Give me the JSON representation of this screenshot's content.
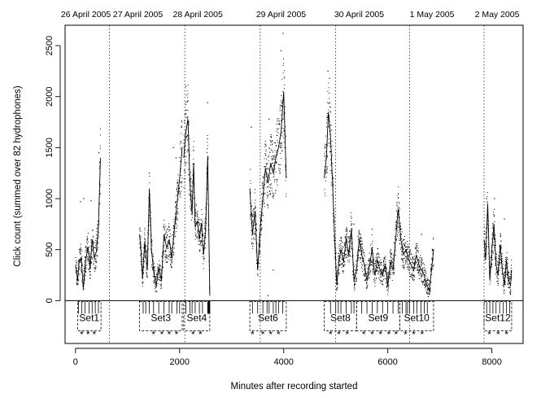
{
  "chart_data": {
    "type": "scatter",
    "xlabel": "Minutes after recording started",
    "ylabel": "Click count (summed over 82 hydrophones)",
    "xlim": [
      -200,
      8600
    ],
    "ylim": [
      -420,
      2700
    ],
    "x_ticks": [
      0,
      2000,
      4000,
      6000,
      8000
    ],
    "y_ticks": [
      0,
      500,
      1000,
      1500,
      2000,
      2500
    ],
    "grid": false,
    "day_labels": [
      {
        "x": 200,
        "label": "26 April 2005"
      },
      {
        "x": 1200,
        "label": "27 April 2005"
      },
      {
        "x": 2350,
        "label": "28 April 2005"
      },
      {
        "x": 3950,
        "label": "29 April 2005"
      },
      {
        "x": 5450,
        "label": "30 April 2005"
      },
      {
        "x": 6850,
        "label": "1 May 2005"
      },
      {
        "x": 8100,
        "label": "2 May 2005"
      }
    ],
    "day_boundaries": [
      650,
      2100,
      3550,
      5000,
      6420,
      7850
    ],
    "recording_segments": [
      {
        "x_start": 0,
        "x_end": 480,
        "smooth_line": [
          [
            0,
            350
          ],
          [
            40,
            200
          ],
          [
            70,
            380
          ],
          [
            110,
            420
          ],
          [
            150,
            120
          ],
          [
            190,
            380
          ],
          [
            240,
            530
          ],
          [
            280,
            310
          ],
          [
            320,
            600
          ],
          [
            360,
            420
          ],
          [
            400,
            480
          ],
          [
            440,
            700
          ],
          [
            480,
            1400
          ]
        ],
        "extra_points": [
          [
            95,
            970
          ],
          [
            160,
            1000
          ],
          [
            300,
            980
          ],
          [
            450,
            1450
          ]
        ]
      },
      {
        "x_start": 1230,
        "x_end": 2050,
        "smooth_line": [
          [
            1230,
            650
          ],
          [
            1260,
            480
          ],
          [
            1290,
            220
          ],
          [
            1330,
            580
          ],
          [
            1380,
            300
          ],
          [
            1420,
            1100
          ],
          [
            1460,
            500
          ],
          [
            1510,
            250
          ],
          [
            1550,
            150
          ],
          [
            1600,
            320
          ],
          [
            1650,
            200
          ],
          [
            1700,
            650
          ],
          [
            1750,
            520
          ],
          [
            1800,
            600
          ],
          [
            1850,
            420
          ],
          [
            1900,
            700
          ],
          [
            1950,
            950
          ],
          [
            2000,
            1200
          ],
          [
            2050,
            1500
          ]
        ],
        "extra_points": [
          [
            1420,
            1250
          ],
          [
            1880,
            1500
          ],
          [
            1930,
            1400
          ],
          [
            2040,
            1700
          ]
        ]
      },
      {
        "x_start": 2080,
        "x_end": 2580,
        "smooth_line": [
          [
            2080,
            1400
          ],
          [
            2120,
            1650
          ],
          [
            2160,
            1780
          ],
          [
            2200,
            1150
          ],
          [
            2240,
            850
          ],
          [
            2270,
            1350
          ],
          [
            2300,
            720
          ],
          [
            2340,
            780
          ],
          [
            2380,
            600
          ],
          [
            2420,
            760
          ],
          [
            2460,
            450
          ],
          [
            2500,
            680
          ],
          [
            2540,
            1420
          ],
          [
            2580,
            50
          ]
        ],
        "extra_points": [
          [
            2120,
            2100
          ],
          [
            2150,
            1950
          ],
          [
            2540,
            1940
          ]
        ]
      },
      {
        "x_start": 3350,
        "x_end": 4050,
        "smooth_line": [
          [
            3350,
            1100
          ],
          [
            3400,
            650
          ],
          [
            3450,
            880
          ],
          [
            3500,
            300
          ],
          [
            3550,
            700
          ],
          [
            3600,
            1000
          ],
          [
            3650,
            1300
          ],
          [
            3700,
            1150
          ],
          [
            3750,
            1350
          ],
          [
            3800,
            1250
          ],
          [
            3850,
            1400
          ],
          [
            3900,
            1500
          ],
          [
            3950,
            1650
          ],
          [
            4000,
            2050
          ],
          [
            4050,
            1200
          ]
        ],
        "extra_points": [
          [
            3380,
            1700
          ],
          [
            3720,
            1780
          ],
          [
            3950,
            2450
          ],
          [
            3990,
            2620
          ],
          [
            3800,
            300
          ],
          [
            3700,
            50
          ]
        ]
      },
      {
        "x_start": 4780,
        "x_end": 6880,
        "smooth_line": [
          [
            4780,
            1200
          ],
          [
            4820,
            1400
          ],
          [
            4860,
            1850
          ],
          [
            4900,
            1600
          ],
          [
            4940,
            1150
          ],
          [
            4980,
            600
          ],
          [
            5020,
            150
          ],
          [
            5060,
            380
          ],
          [
            5100,
            500
          ],
          [
            5150,
            380
          ],
          [
            5200,
            600
          ],
          [
            5250,
            450
          ],
          [
            5300,
            700
          ],
          [
            5350,
            200
          ],
          [
            5400,
            300
          ],
          [
            5450,
            600
          ],
          [
            5500,
            450
          ],
          [
            5550,
            350
          ],
          [
            5600,
            200
          ],
          [
            5650,
            350
          ],
          [
            5700,
            500
          ],
          [
            5750,
            250
          ],
          [
            5800,
            400
          ],
          [
            5850,
            300
          ],
          [
            5900,
            250
          ],
          [
            5950,
            350
          ],
          [
            6000,
            150
          ],
          [
            6050,
            380
          ],
          [
            6100,
            300
          ],
          [
            6150,
            600
          ],
          [
            6200,
            900
          ],
          [
            6250,
            600
          ],
          [
            6300,
            450
          ],
          [
            6350,
            500
          ],
          [
            6400,
            400
          ],
          [
            6450,
            350
          ],
          [
            6500,
            300
          ],
          [
            6550,
            450
          ],
          [
            6600,
            350
          ],
          [
            6650,
            300
          ],
          [
            6700,
            250
          ],
          [
            6750,
            150
          ],
          [
            6800,
            100
          ],
          [
            6850,
            350
          ],
          [
            6880,
            500
          ]
        ],
        "extra_points": [
          [
            4850,
            2250
          ],
          [
            4880,
            2180
          ],
          [
            5350,
            750
          ],
          [
            6200,
            1050
          ],
          [
            5700,
            700
          ],
          [
            6650,
            650
          ]
        ]
      },
      {
        "x_start": 7850,
        "x_end": 8380,
        "smooth_line": [
          [
            7850,
            600
          ],
          [
            7880,
            400
          ],
          [
            7920,
            950
          ],
          [
            7960,
            200
          ],
          [
            8000,
            500
          ],
          [
            8040,
            750
          ],
          [
            8080,
            350
          ],
          [
            8120,
            250
          ],
          [
            8160,
            550
          ],
          [
            8200,
            300
          ],
          [
            8240,
            150
          ],
          [
            8280,
            400
          ],
          [
            8320,
            200
          ],
          [
            8360,
            150
          ],
          [
            8380,
            300
          ]
        ],
        "extra_points": [
          [
            7900,
            1000
          ],
          [
            8050,
            1000
          ],
          [
            8240,
            800
          ]
        ]
      }
    ],
    "sets": [
      {
        "label": "Set1",
        "x_start": 40,
        "x_end": 490
      },
      {
        "label": "Set3",
        "x_start": 1230,
        "x_end": 2050
      },
      {
        "label": "Set4",
        "x_start": 2080,
        "x_end": 2580
      },
      {
        "label": "Set6",
        "x_start": 3350,
        "x_end": 4050
      },
      {
        "label": "Set8",
        "x_start": 4780,
        "x_end": 5400
      },
      {
        "label": "Set9",
        "x_start": 5400,
        "x_end": 6230
      },
      {
        "label": "Set10",
        "x_start": 6230,
        "x_end": 6880
      },
      {
        "label": "Set12",
        "x_start": 7850,
        "x_end": 8380
      }
    ],
    "rug_marks_x": [
      60,
      120,
      180,
      260,
      320,
      380,
      440,
      1300,
      1350,
      1420,
      1500,
      1600,
      1700,
      1800,
      1850,
      1950,
      2000,
      2120,
      2200,
      2240,
      2300,
      2380,
      2440,
      2540,
      2550,
      2560,
      2570,
      2580,
      3400,
      3500,
      3600,
      3680,
      3720,
      3800,
      3850,
      3900,
      3980,
      4900,
      5000,
      5050,
      5100,
      5200,
      5300,
      5350,
      5500,
      5600,
      5700,
      5800,
      5900,
      6000,
      6100,
      6200,
      6280,
      6350,
      6380,
      6420,
      6500,
      6560,
      6640,
      6700,
      6760,
      7900,
      7960,
      8020,
      8080,
      8150,
      8220,
      8280,
      8340
    ],
    "asterisks_x": [
      120,
      240,
      360,
      1500,
      1660,
      1800,
      1940,
      2260,
      2400,
      3400,
      3600,
      3750,
      3900,
      4900,
      5060,
      5220,
      5540,
      5700,
      5860,
      6020,
      6160,
      6340,
      6500,
      6660,
      7950,
      8120,
      8280
    ]
  }
}
